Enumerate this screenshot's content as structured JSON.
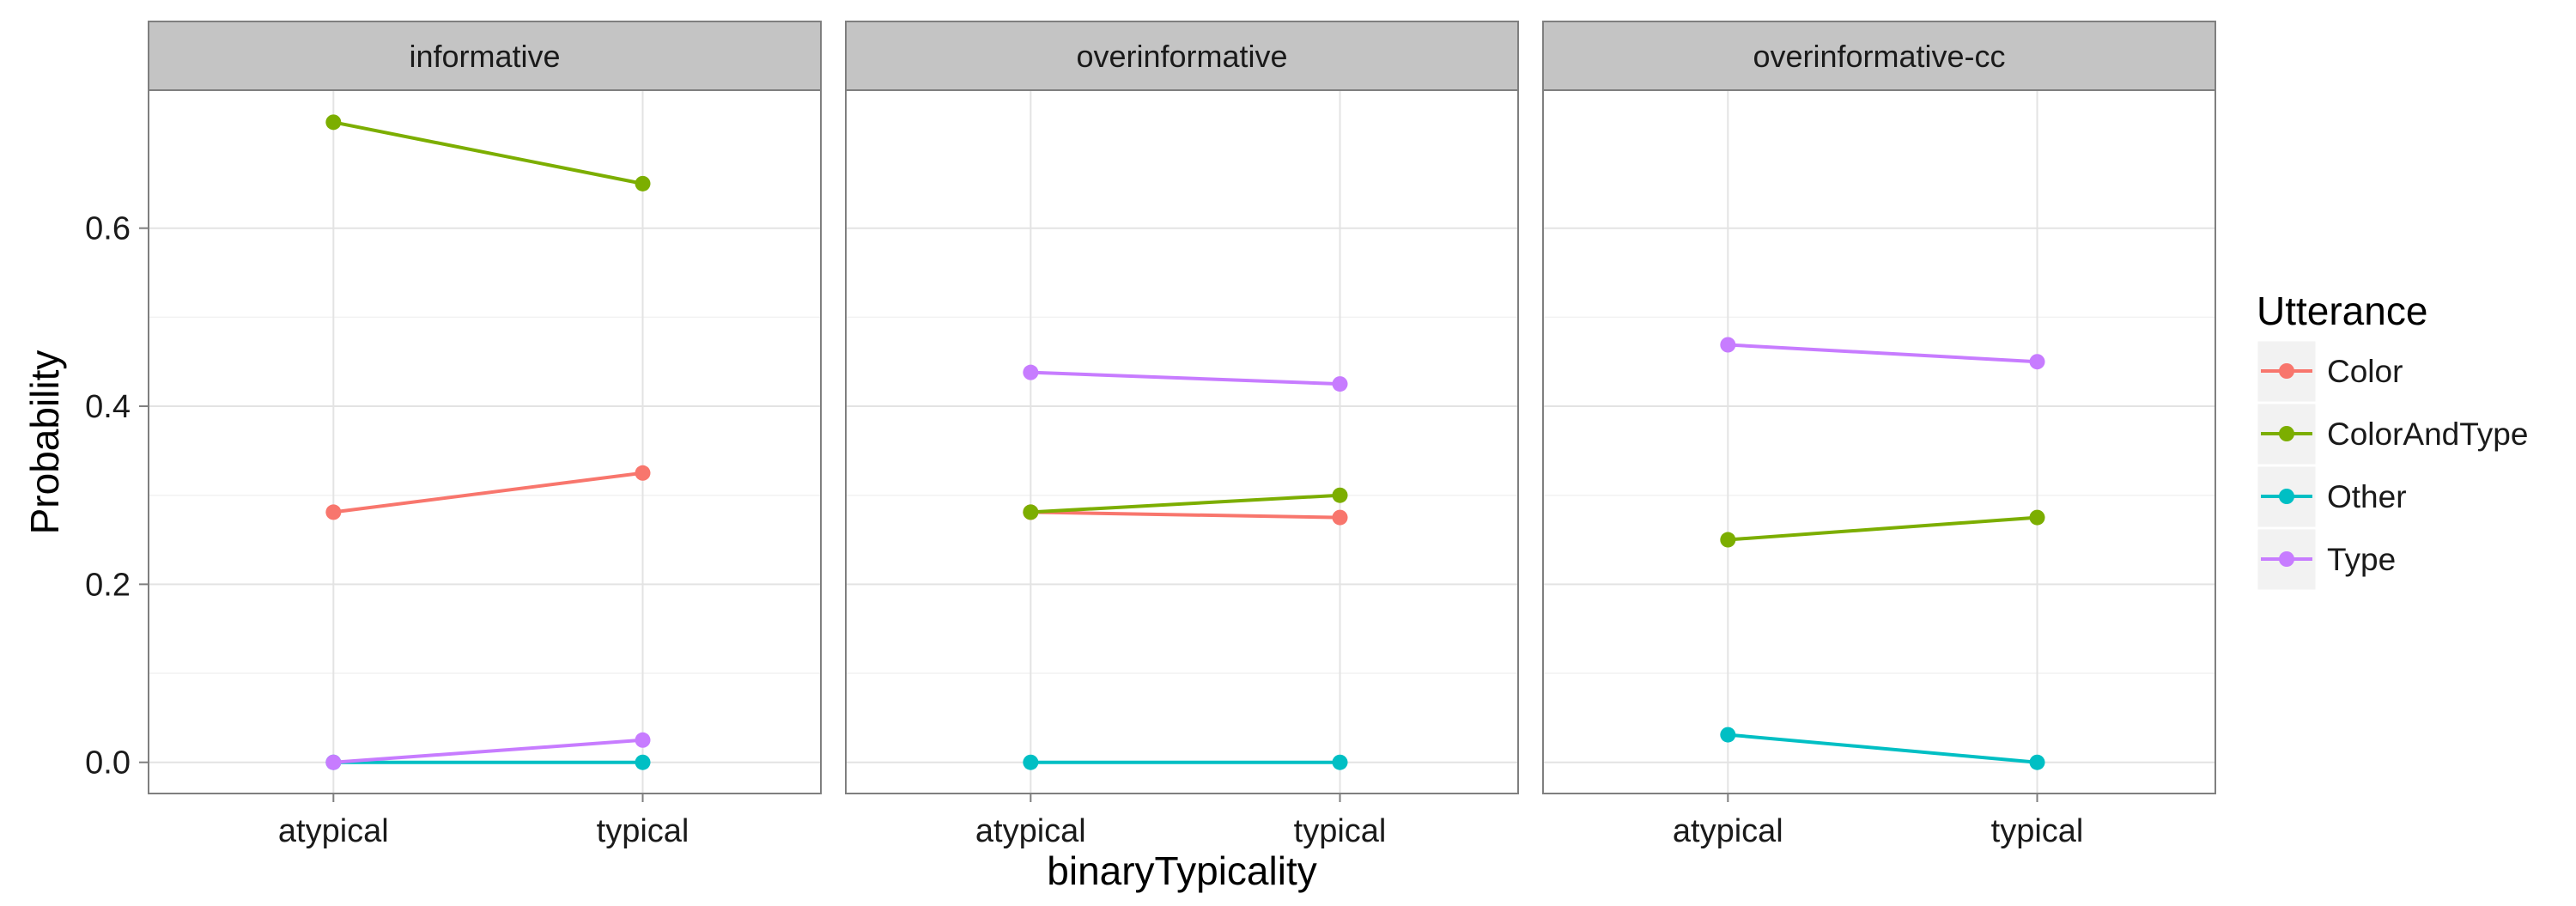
{
  "chart_data": {
    "type": "line",
    "facets": [
      "informative",
      "overinformative",
      "overinformative-cc"
    ],
    "categories": [
      "atypical",
      "typical"
    ],
    "xlabel": "binaryTypicality",
    "ylabel": "Probability",
    "ylim": [
      -0.035,
      0.755
    ],
    "yticks": [
      0.0,
      0.2,
      0.4,
      0.6
    ],
    "ytick_labels": [
      "0.0",
      "0.2",
      "0.4",
      "0.6"
    ],
    "grid": true,
    "legend": {
      "title": "Utterance",
      "placement": "right",
      "entries": [
        "Color",
        "ColorAndType",
        "Other",
        "Type"
      ]
    },
    "colors": {
      "Color": "#F8766D",
      "ColorAndType": "#7CAE00",
      "Other": "#00BFC4",
      "Type": "#C77CFF"
    },
    "series": [
      {
        "name": "Color",
        "values": {
          "informative": [
            0.281,
            0.325
          ],
          "overinformative": [
            0.281,
            0.275
          ],
          "overinformative-cc": null
        }
      },
      {
        "name": "ColorAndType",
        "values": {
          "informative": [
            0.719,
            0.65
          ],
          "overinformative": [
            0.281,
            0.3
          ],
          "overinformative-cc": [
            0.25,
            0.275
          ]
        }
      },
      {
        "name": "Other",
        "values": {
          "informative": [
            0.0,
            0.0
          ],
          "overinformative": [
            0.0,
            0.0
          ],
          "overinformative-cc": [
            0.031,
            0.0
          ]
        }
      },
      {
        "name": "Type",
        "values": {
          "informative": [
            0.0,
            0.025
          ],
          "overinformative": [
            0.438,
            0.425
          ],
          "overinformative-cc": [
            0.469,
            0.45
          ]
        }
      }
    ]
  }
}
